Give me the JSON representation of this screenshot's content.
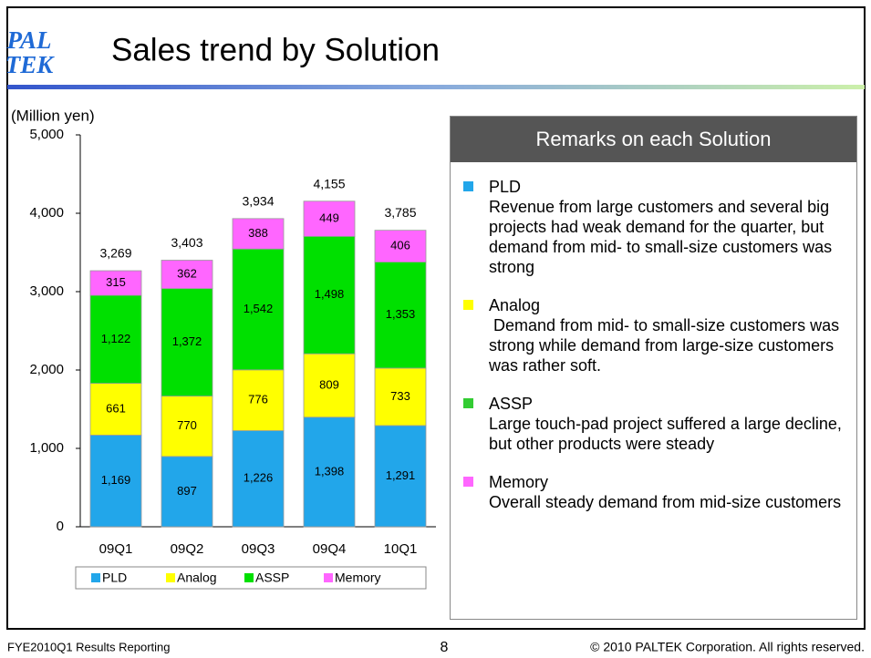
{
  "header": {
    "logo_top": "PAL",
    "logo_bottom": "TEK",
    "title": "Sales trend by Solution"
  },
  "chart_data": {
    "type": "stacked_bar",
    "y_label": "(Million yen)",
    "categories": [
      "09Q1",
      "09Q2",
      "09Q3",
      "09Q4",
      "10Q1"
    ],
    "series": [
      {
        "name": "PLD",
        "color": "#22a6ea",
        "values": [
          1169,
          897,
          1226,
          1398,
          1291
        ],
        "value_labels": [
          "1,169",
          "897",
          "1,226",
          "1,398",
          "1,291"
        ]
      },
      {
        "name": "Analog",
        "color": "#ffff00",
        "values": [
          661,
          770,
          776,
          809,
          733
        ],
        "value_labels": [
          "661",
          "770",
          "776",
          "809",
          "733"
        ]
      },
      {
        "name": "ASSP",
        "color": "#00e000",
        "values": [
          1122,
          1372,
          1542,
          1498,
          1353
        ],
        "value_labels": [
          "1,122",
          "1,372",
          "1,542",
          "1,498",
          "1,353"
        ]
      },
      {
        "name": "Memory",
        "color": "#ff66ff",
        "values": [
          315,
          362,
          388,
          449,
          406
        ],
        "value_labels": [
          "315",
          "362",
          "388",
          "449",
          "406"
        ]
      }
    ],
    "totals": {
      "values": [
        3269,
        3403,
        3934,
        4155,
        3785
      ],
      "value_labels": [
        "3,269",
        "3,403",
        "3,934",
        "4,155",
        "3,785"
      ]
    },
    "ylim": [
      0,
      5000
    ],
    "yticks": [
      0,
      {
        "value": 1000,
        "label": "1,000"
      },
      {
        "value": 2000,
        "label": "2,000"
      },
      {
        "value": 3000,
        "label": "3,000"
      },
      {
        "value": 4000,
        "label": "4,000"
      },
      {
        "value": 5000,
        "label": "5,000"
      }
    ]
  },
  "remarks": {
    "title": "Remarks on each Solution",
    "items": [
      {
        "name": "PLD",
        "color": "#22a6ea",
        "text": "Revenue from large customers and several big projects had weak demand for the quarter, but demand from mid- to small-size customers was strong"
      },
      {
        "name": "Analog",
        "color": "#ffff00",
        "text": " Demand from mid- to small-size customers was strong while demand from large-size customers was rather soft."
      },
      {
        "name": "ASSP",
        "color": "#33cc33",
        "text": "Large touch-pad project suffered a large decline, but other products were steady"
      },
      {
        "name": "Memory",
        "color": "#ff66ff",
        "text": "Overall steady demand from mid-size customers"
      }
    ]
  },
  "footer": {
    "left": "FYE2010Q1 Results Reporting",
    "page": "8",
    "right": "© 2010 PALTEK Corporation. All rights reserved."
  }
}
